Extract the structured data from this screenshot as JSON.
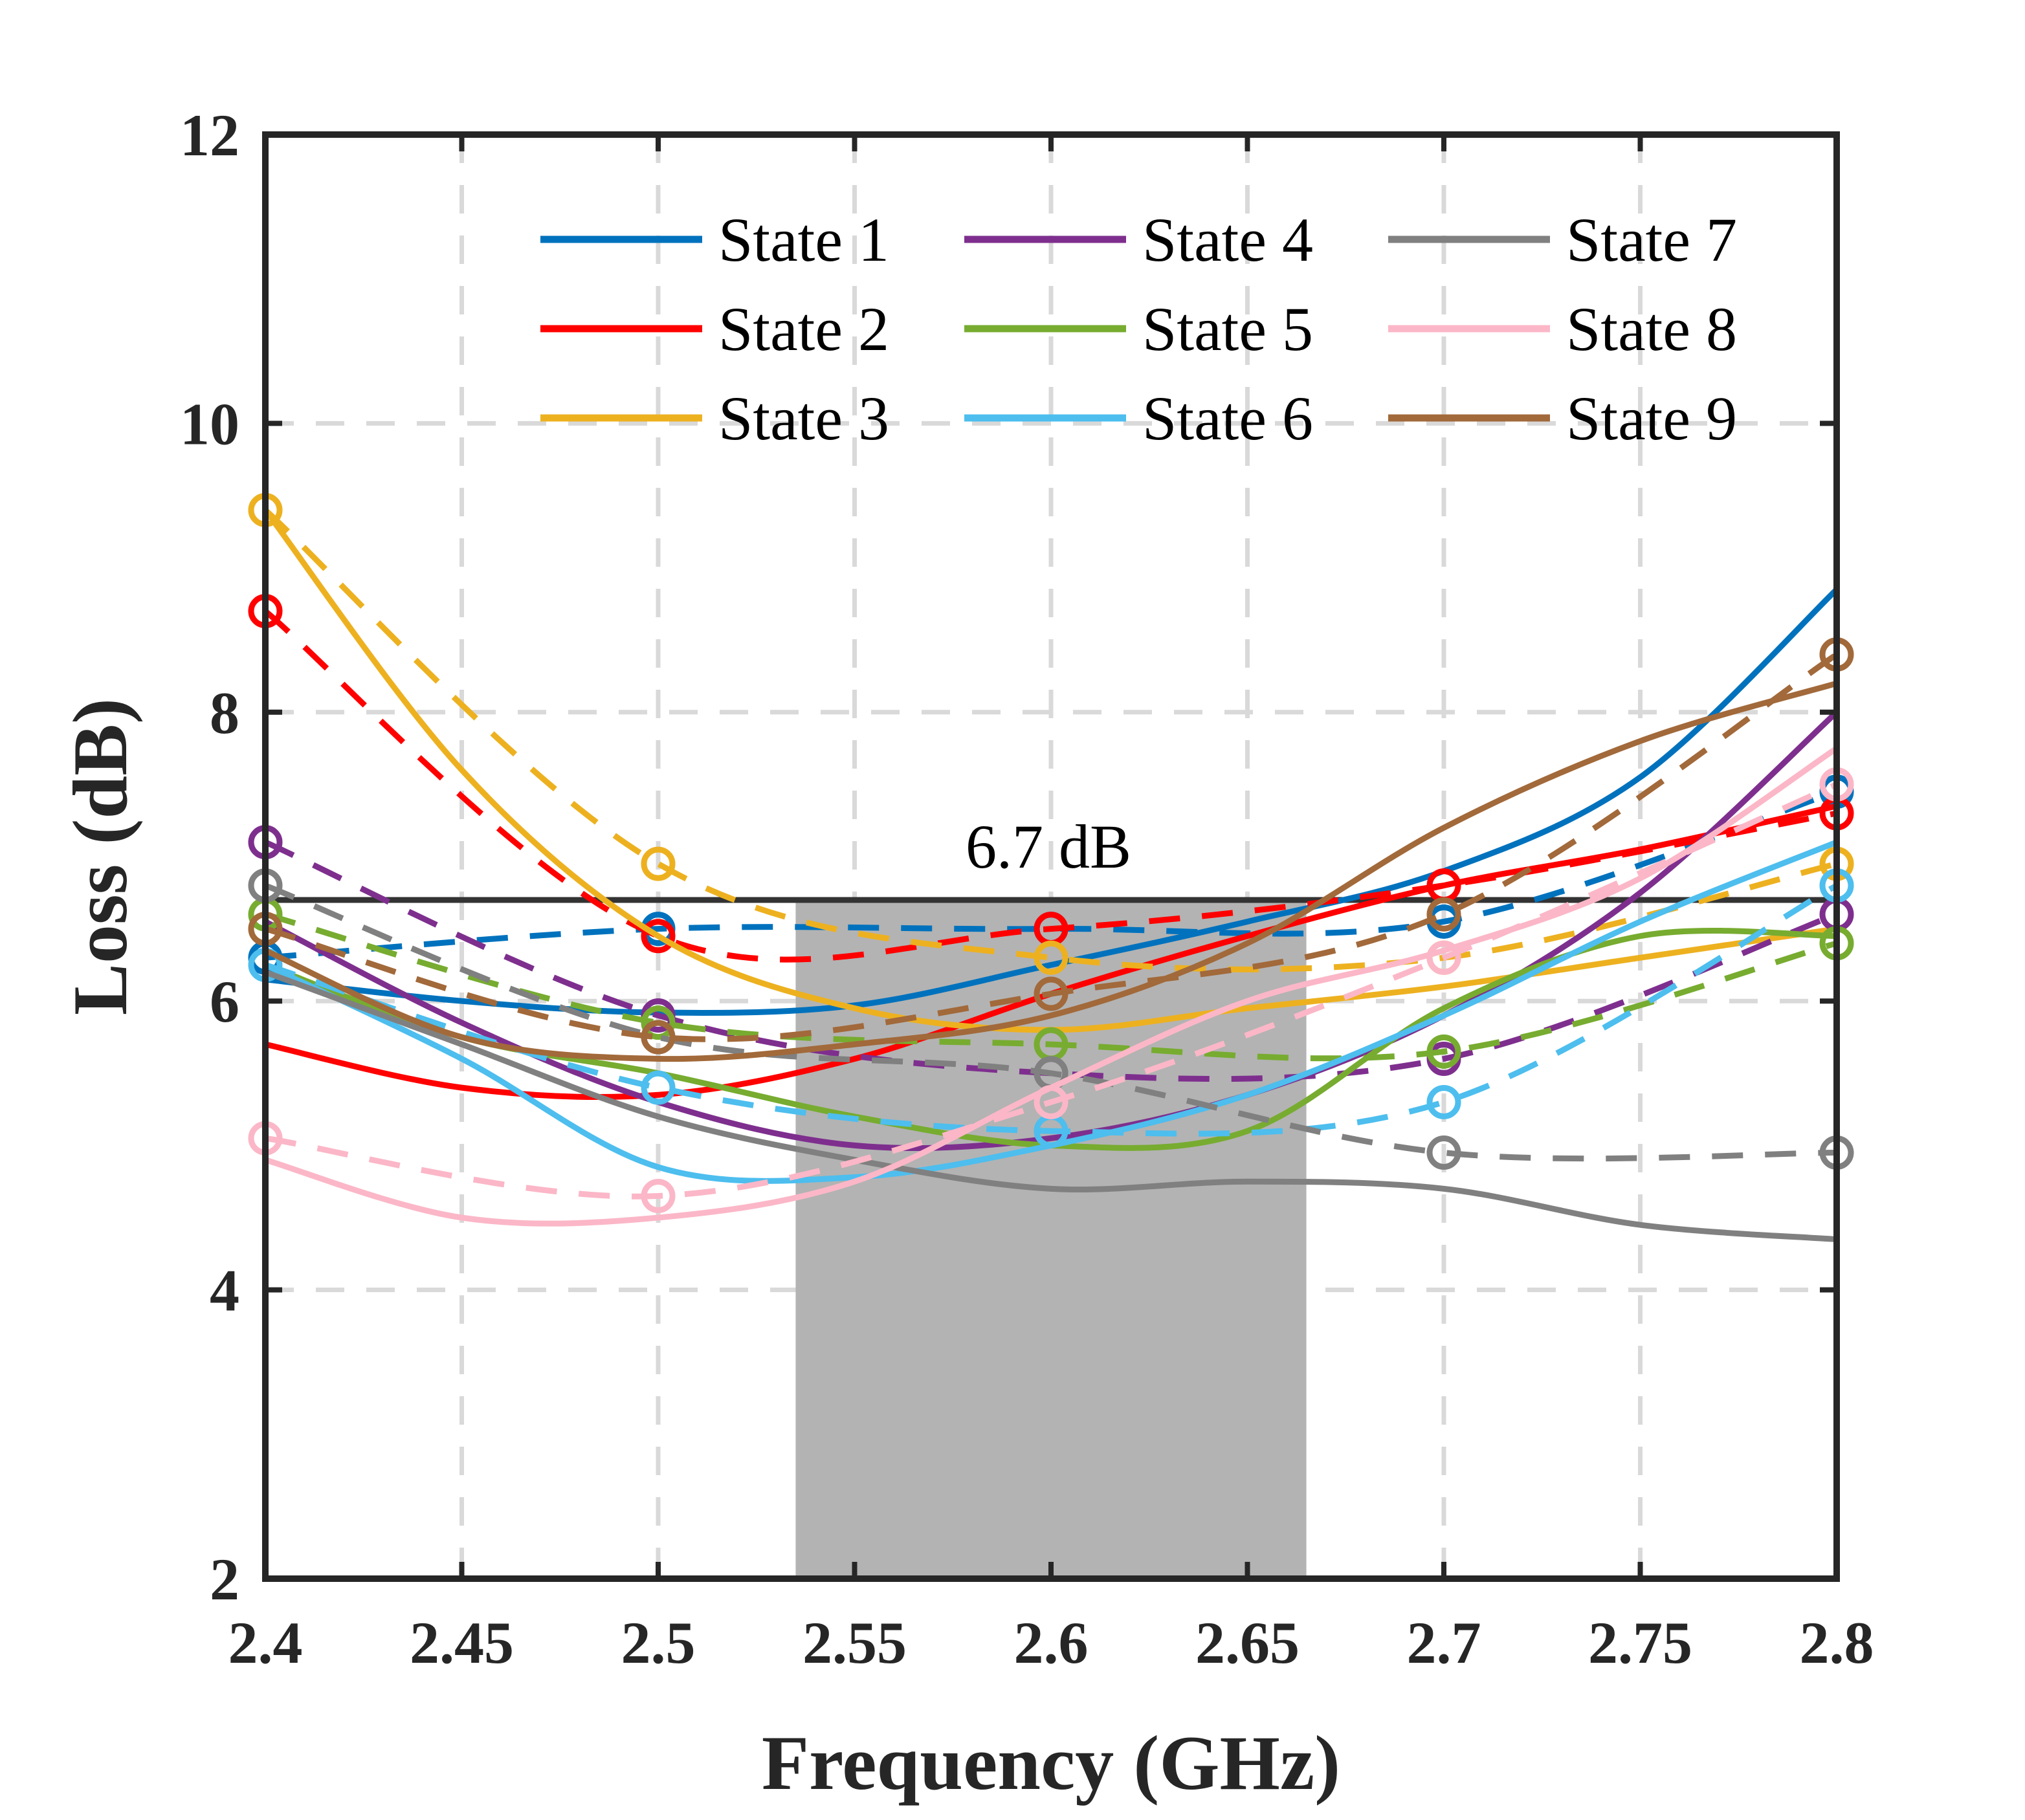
{
  "chart_data": {
    "type": "line",
    "xlabel": "Frequency (GHz)",
    "ylabel": "Loss (dB)",
    "xlim": [
      2.4,
      2.8
    ],
    "ylim": [
      2,
      12
    ],
    "xticks": [
      "2.4",
      "2.45",
      "2.5",
      "2.55",
      "2.6",
      "2.65",
      "2.7",
      "2.75",
      "2.8"
    ],
    "yticks": [
      "2",
      "4",
      "6",
      "8",
      "10",
      "12"
    ],
    "grid": true,
    "legend_position": "top-right",
    "band": {
      "x_start": 2.535,
      "x_end": 2.665,
      "color": "#b3b3b3"
    },
    "threshold": {
      "value": 6.7,
      "label": "6.7 dB"
    },
    "line_styles": {
      "solid": "simulated",
      "dashed_with_markers": "measured"
    },
    "x_sim": [
      2.4,
      2.45,
      2.5,
      2.55,
      2.6,
      2.65,
      2.7,
      2.75,
      2.8
    ],
    "x_meas": [
      2.4,
      2.5,
      2.6,
      2.7,
      2.8
    ],
    "series": [
      {
        "name": "State 1",
        "color": "#0072bd",
        "sim": [
          6.15,
          6.0,
          5.92,
          5.97,
          6.25,
          6.55,
          6.9,
          7.55,
          8.85
        ],
        "meas": [
          6.3,
          6.5,
          6.5,
          6.55,
          7.45
        ]
      },
      {
        "name": "State 2",
        "color": "#ff0000",
        "sim": [
          5.7,
          5.4,
          5.35,
          5.6,
          6.05,
          6.45,
          6.8,
          7.05,
          7.35
        ],
        "meas": [
          8.7,
          6.45,
          6.5,
          6.8,
          7.3
        ]
      },
      {
        "name": "State 3",
        "color": "#edb120",
        "sim": [
          9.4,
          7.6,
          6.45,
          5.95,
          5.8,
          5.95,
          6.1,
          6.3,
          6.5
        ],
        "meas": [
          9.4,
          6.95,
          6.3,
          6.3,
          6.95
        ]
      },
      {
        "name": "State 4",
        "color": "#7e2f8e",
        "sim": [
          6.55,
          5.85,
          5.3,
          5.0,
          5.05,
          5.35,
          5.9,
          6.75,
          8.0
        ],
        "meas": [
          7.1,
          5.9,
          5.5,
          5.6,
          6.6
        ]
      },
      {
        "name": "State 5",
        "color": "#77ac30",
        "sim": [
          6.25,
          5.75,
          5.5,
          5.2,
          5.0,
          5.1,
          5.95,
          6.45,
          6.45
        ],
        "meas": [
          6.6,
          5.85,
          5.7,
          5.65,
          6.4
        ]
      },
      {
        "name": "State 6",
        "color": "#4dbeee",
        "sim": [
          6.25,
          5.6,
          4.85,
          4.78,
          5.0,
          5.35,
          5.9,
          6.55,
          7.1
        ],
        "meas": [
          6.25,
          5.4,
          5.1,
          5.3,
          6.8
        ]
      },
      {
        "name": "State 7",
        "color": "#808080",
        "sim": [
          6.2,
          5.7,
          5.2,
          4.9,
          4.7,
          4.75,
          4.7,
          4.45,
          4.35
        ],
        "meas": [
          6.8,
          5.75,
          5.5,
          4.95,
          4.95
        ]
      },
      {
        "name": "State 8",
        "color": "#fbb7c7",
        "sim": [
          4.9,
          4.5,
          4.5,
          4.75,
          5.4,
          6.0,
          6.35,
          6.85,
          7.75
        ],
        "meas": [
          5.05,
          4.65,
          5.3,
          6.3,
          7.5
        ]
      },
      {
        "name": "State 9",
        "color": "#a2693a",
        "sim": [
          6.35,
          5.75,
          5.6,
          5.7,
          5.9,
          6.4,
          7.2,
          7.8,
          8.2
        ],
        "meas": [
          6.5,
          5.75,
          6.05,
          6.6,
          8.4
        ]
      }
    ]
  }
}
